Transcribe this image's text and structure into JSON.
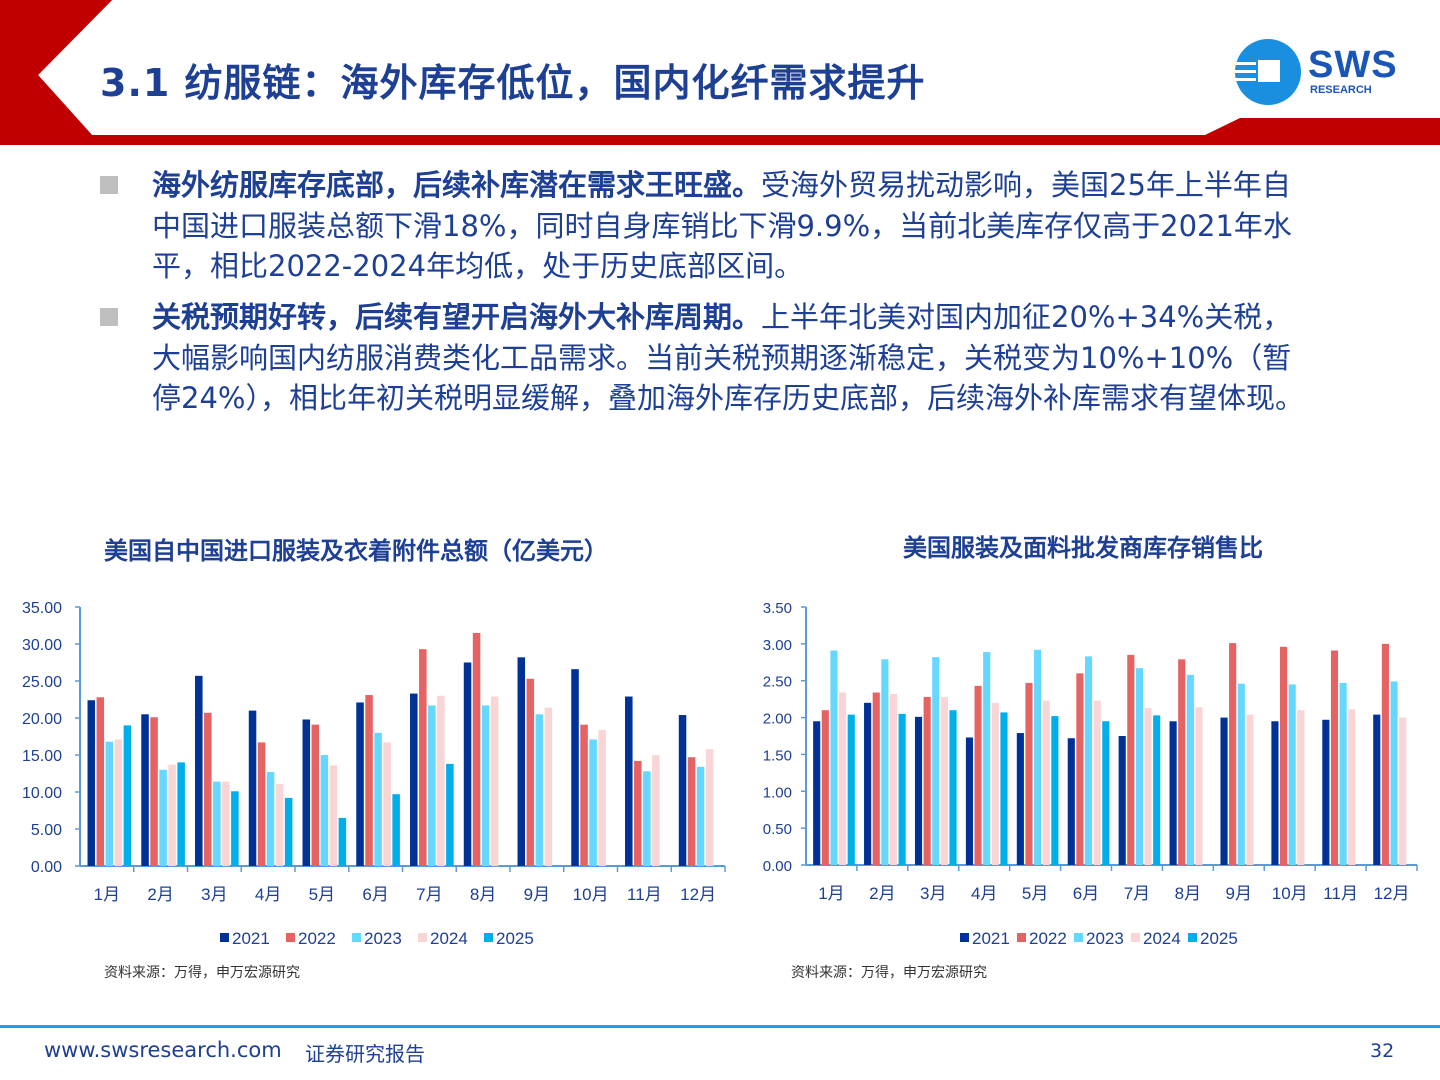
{
  "header": {
    "title": "3.1 纺服链：海外库存低位，国内化纤需求提升",
    "logo_text": "SWS",
    "logo_sub": "RESEARCH"
  },
  "bullets": [
    {
      "bold": "海外纺服库存底部，后续补库潜在需求王旺盛。",
      "text": "受海外贸易扰动影响，美国25年上半年自中国进口服装总额下滑18%，同时自身库销比下滑9.9%，当前北美库存仅高于2021年水平，相比2022-2024年均低，处于历史底部区间。"
    },
    {
      "bold": "关税预期好转，后续有望开启海外大补库周期。",
      "text": "上半年北美对国内加征20%+34%关税，大幅影响国内纺服消费类化工品需求。当前关税预期逐渐稳定，关税变为10%+10%（暂停24%），相比年初关税明显缓解，叠加海外库存历史底部，后续海外补库需求有望体现。"
    }
  ],
  "colors": {
    "2021": "#003296",
    "2022": "#e56363",
    "2023": "#66d7ff",
    "2024": "#fad5d5",
    "2025": "#00aeea"
  },
  "chart_data": [
    {
      "type": "bar",
      "title": "美国自中国进口服装及衣着附件总额（亿美元）",
      "source": "资料来源：万得，申万宏源研究",
      "categories": [
        "1月",
        "2月",
        "3月",
        "4月",
        "5月",
        "6月",
        "7月",
        "8月",
        "9月",
        "10月",
        "11月",
        "12月"
      ],
      "ylim": [
        0,
        35
      ],
      "yticks": [
        "0.00",
        "5.00",
        "10.00",
        "15.00",
        "20.00",
        "25.00",
        "30.00",
        "35.00"
      ],
      "legend": "bottom",
      "series": [
        {
          "name": "2021",
          "values": [
            22.4,
            20.5,
            25.7,
            21.0,
            19.8,
            22.1,
            23.3,
            27.5,
            28.2,
            26.6,
            22.9,
            20.4
          ]
        },
        {
          "name": "2022",
          "values": [
            22.8,
            20.1,
            20.7,
            16.7,
            19.1,
            23.1,
            29.3,
            31.5,
            25.3,
            19.1,
            14.2,
            14.7
          ]
        },
        {
          "name": "2023",
          "values": [
            16.8,
            13.0,
            11.4,
            12.7,
            15.0,
            18.0,
            21.7,
            21.7,
            20.5,
            17.1,
            12.8,
            13.4
          ]
        },
        {
          "name": "2024",
          "values": [
            17.1,
            13.7,
            11.4,
            11.1,
            13.6,
            16.7,
            23.0,
            22.9,
            21.4,
            18.4,
            15.0,
            15.8
          ]
        },
        {
          "name": "2025",
          "values": [
            19.0,
            14.0,
            10.1,
            9.2,
            6.5,
            9.7,
            13.8,
            null,
            null,
            null,
            null,
            null
          ]
        }
      ]
    },
    {
      "type": "bar",
      "title": "美国服装及面料批发商库存销售比",
      "source": "资料来源：万得，申万宏源研究",
      "categories": [
        "1月",
        "2月",
        "3月",
        "4月",
        "5月",
        "6月",
        "7月",
        "8月",
        "9月",
        "10月",
        "11月",
        "12月"
      ],
      "ylim": [
        0,
        3.5
      ],
      "yticks": [
        "0.00",
        "0.50",
        "1.00",
        "1.50",
        "2.00",
        "2.50",
        "3.00",
        "3.50"
      ],
      "legend": "bottom",
      "series": [
        {
          "name": "2021",
          "values": [
            1.95,
            2.2,
            2.01,
            1.73,
            1.79,
            1.72,
            1.75,
            1.95,
            2.0,
            1.95,
            1.97,
            2.04
          ]
        },
        {
          "name": "2022",
          "values": [
            2.1,
            2.34,
            2.28,
            2.43,
            2.47,
            2.6,
            2.85,
            2.79,
            3.01,
            2.96,
            2.91,
            3.0
          ]
        },
        {
          "name": "2023",
          "values": [
            2.91,
            2.79,
            2.82,
            2.89,
            2.92,
            2.83,
            2.67,
            2.58,
            2.46,
            2.45,
            2.47,
            2.49
          ]
        },
        {
          "name": "2024",
          "values": [
            2.34,
            2.32,
            2.28,
            2.2,
            2.23,
            2.23,
            2.13,
            2.14,
            2.04,
            2.1,
            2.11,
            2.0
          ]
        },
        {
          "name": "2025",
          "values": [
            2.04,
            2.05,
            2.1,
            2.07,
            2.02,
            1.95,
            2.03,
            null,
            null,
            null,
            null,
            null
          ]
        }
      ]
    }
  ],
  "footer": {
    "url": "www.swsresearch.com",
    "label": "证券研究报告",
    "page": "32"
  }
}
